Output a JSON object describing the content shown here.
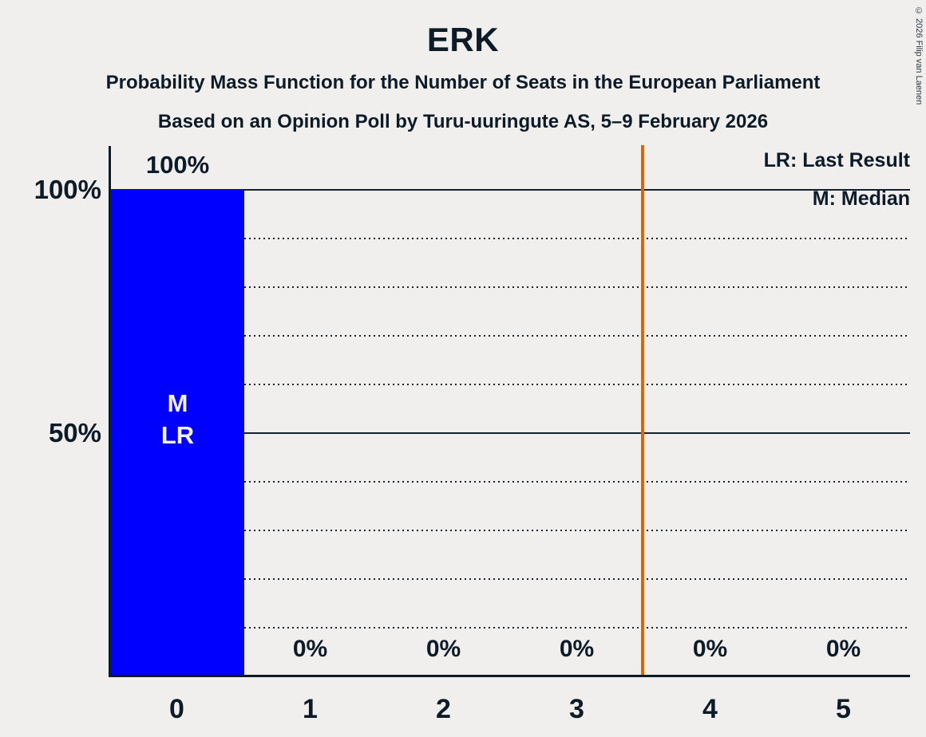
{
  "header": {
    "title": "ERK",
    "subtitle1": "Probability Mass Function for the Number of Seats in the European Parliament",
    "subtitle2": "Based on an Opinion Poll by Turu-uuringute AS, 5–9 February 2026",
    "copyright": "© 2026 Filip van Laenen"
  },
  "legend": {
    "last_result": "LR: Last Result",
    "median": "M: Median"
  },
  "axes": {
    "y_ticks": [
      "100%",
      "50%"
    ],
    "x_ticks": [
      "0",
      "1",
      "2",
      "3",
      "4",
      "5"
    ]
  },
  "bar": {
    "annotations": "M\nLR",
    "value_label": "100%"
  },
  "zero_labels": [
    "0%",
    "0%",
    "0%",
    "0%",
    "0%"
  ],
  "colors": {
    "background": "#f0efee",
    "text": "#0d1b29",
    "bar": "#0000fe",
    "bar_label": "#f0f0f0",
    "threshold_line": "#d2690f"
  },
  "chart_data": {
    "type": "bar",
    "title": "ERK",
    "subtitle": "Probability Mass Function for the Number of Seats in the European Parliament",
    "source": "Based on an Opinion Poll by Turu-uuringute AS, 5–9 February 2026",
    "categories": [
      0,
      1,
      2,
      3,
      4,
      5
    ],
    "values": [
      100,
      0,
      0,
      0,
      0,
      0
    ],
    "value_labels": [
      "100%",
      "0%",
      "0%",
      "0%",
      "0%",
      "0%"
    ],
    "xlabel": "",
    "ylabel": "",
    "ylim": [
      0,
      100
    ],
    "y_tick_values": [
      100,
      50
    ],
    "y_gridlines_solid": [
      100,
      50
    ],
    "y_gridlines_dotted": [
      90,
      80,
      70,
      60,
      40,
      30,
      20,
      10
    ],
    "threshold_x": 3.5,
    "median": 0,
    "last_result": 0,
    "grid": true,
    "legend_position": "top-right",
    "legend_entries": [
      "LR: Last Result",
      "M: Median"
    ]
  }
}
